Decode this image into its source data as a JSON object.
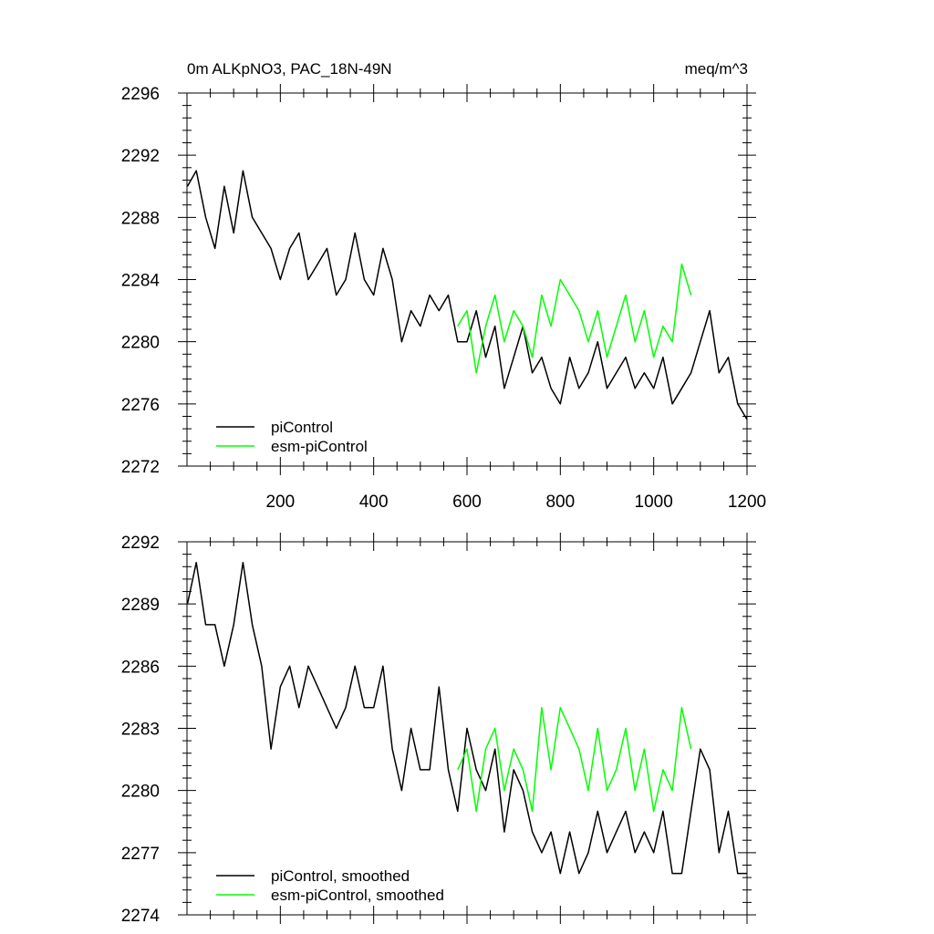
{
  "chart_data": [
    {
      "type": "line",
      "title": "0m ALKpNO3, PAC_18N-49N",
      "units": "meq/m^3",
      "xlim": [
        0,
        1200
      ],
      "ylim": [
        2272,
        2296
      ],
      "x_ticks": [
        200,
        400,
        600,
        800,
        1000,
        1200
      ],
      "x_tick_labels": [
        "200",
        "400",
        "600",
        "800",
        "1000",
        "1200"
      ],
      "y_ticks": [
        2272,
        2276,
        2280,
        2284,
        2288,
        2292,
        2296
      ],
      "y_tick_labels": [
        "2272",
        "2276",
        "2280",
        "2284",
        "2288",
        "2292",
        "2296"
      ],
      "legend_position": "bottom-left",
      "series": [
        {
          "name": "piControl",
          "color": "#000000",
          "x": [
            1,
            20,
            40,
            60,
            80,
            100,
            120,
            140,
            160,
            180,
            200,
            220,
            240,
            260,
            280,
            300,
            320,
            340,
            360,
            380,
            400,
            420,
            440,
            460,
            480,
            500,
            520,
            540,
            560,
            580,
            600,
            620,
            640,
            660,
            680,
            700,
            720,
            740,
            760,
            780,
            800,
            820,
            840,
            860,
            880,
            900,
            920,
            940,
            960,
            980,
            1000,
            1020,
            1040,
            1060,
            1080,
            1100,
            1120,
            1140,
            1160,
            1180,
            1200
          ],
          "values": [
            2290,
            2291,
            2288,
            2286,
            2290,
            2287,
            2291,
            2288,
            2287,
            2286,
            2284,
            2286,
            2287,
            2284,
            2285,
            2286,
            2283,
            2284,
            2287,
            2284,
            2283,
            2286,
            2284,
            2280,
            2282,
            2281,
            2283,
            2282,
            2283,
            2280,
            2280,
            2282,
            2279,
            2281,
            2277,
            2279,
            2281,
            2278,
            2279,
            2277,
            2276,
            2279,
            2277,
            2278,
            2280,
            2277,
            2278,
            2279,
            2277,
            2278,
            2277,
            2279,
            2276,
            2277,
            2278,
            2280,
            2282,
            2278,
            2279,
            2276,
            2275
          ]
        },
        {
          "name": "esm-piControl",
          "color": "#00ff00",
          "x": [
            580,
            600,
            620,
            640,
            660,
            680,
            700,
            720,
            740,
            760,
            780,
            800,
            820,
            840,
            860,
            880,
            900,
            920,
            940,
            960,
            980,
            1000,
            1020,
            1040,
            1060,
            1080
          ],
          "values": [
            2281,
            2282,
            2278,
            2281,
            2283,
            2280,
            2282,
            2281,
            2279,
            2283,
            2281,
            2284,
            2283,
            2282,
            2280,
            2282,
            2279,
            2281,
            2283,
            2280,
            2282,
            2279,
            2281,
            2280,
            2285,
            2283
          ]
        }
      ]
    },
    {
      "type": "line",
      "xlim": [
        0,
        1200
      ],
      "ylim": [
        2274,
        2292
      ],
      "x_ticks": [
        200,
        400,
        600,
        800,
        1000,
        1200
      ],
      "y_ticks": [
        2274,
        2277,
        2280,
        2283,
        2286,
        2289,
        2292
      ],
      "y_tick_labels": [
        "2274",
        "2277",
        "2280",
        "2283",
        "2286",
        "2289",
        "2292"
      ],
      "legend_position": "bottom-left",
      "series": [
        {
          "name": "piControl, smoothed",
          "color": "#000000",
          "x": [
            1,
            20,
            40,
            60,
            80,
            100,
            120,
            140,
            160,
            180,
            200,
            220,
            240,
            260,
            280,
            300,
            320,
            340,
            360,
            380,
            400,
            420,
            440,
            460,
            480,
            500,
            520,
            540,
            560,
            580,
            600,
            620,
            640,
            660,
            680,
            700,
            720,
            740,
            760,
            780,
            800,
            820,
            840,
            860,
            880,
            900,
            920,
            940,
            960,
            980,
            1000,
            1020,
            1040,
            1060,
            1080,
            1100,
            1120,
            1140,
            1160,
            1180,
            1200
          ],
          "values": [
            2289,
            2291,
            2288,
            2288,
            2286,
            2288,
            2291,
            2288,
            2286,
            2282,
            2285,
            2286,
            2284,
            2286,
            2285,
            2284,
            2283,
            2284,
            2286,
            2284,
            2284,
            2286,
            2282,
            2280,
            2283,
            2281,
            2281,
            2285,
            2281,
            2279,
            2283,
            2281,
            2280,
            2282,
            2278,
            2281,
            2280,
            2278,
            2277,
            2278,
            2276,
            2278,
            2276,
            2277,
            2279,
            2277,
            2278,
            2279,
            2277,
            2278,
            2277,
            2279,
            2276,
            2276,
            2279,
            2282,
            2281,
            2277,
            2279,
            2276,
            2276
          ]
        },
        {
          "name": "esm-piControl, smoothed",
          "color": "#00ff00",
          "x": [
            580,
            600,
            620,
            640,
            660,
            680,
            700,
            720,
            740,
            760,
            780,
            800,
            820,
            840,
            860,
            880,
            900,
            920,
            940,
            960,
            980,
            1000,
            1020,
            1040,
            1060,
            1080
          ],
          "values": [
            2281,
            2282,
            2279,
            2282,
            2283,
            2280,
            2282,
            2281,
            2279,
            2284,
            2281,
            2284,
            2283,
            2282,
            2280,
            2283,
            2280,
            2281,
            2283,
            2280,
            2282,
            2279,
            2281,
            2280,
            2284,
            2282
          ]
        }
      ]
    }
  ]
}
